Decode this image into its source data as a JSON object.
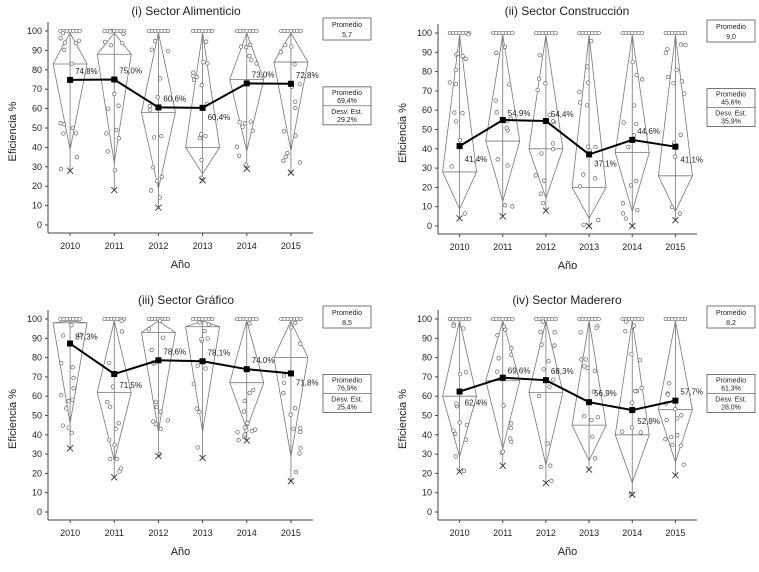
{
  "chart_data": [
    {
      "type": "line",
      "title": "(i) Sector Alimenticio",
      "xlabel": "Año",
      "ylabel": "Eficiencia %",
      "ylim": [
        0,
        100
      ],
      "yticks": [
        "0",
        "10",
        "20",
        "30",
        "40",
        "50",
        "60",
        "70",
        "80",
        "90",
        "100"
      ],
      "categories": [
        "2010",
        "2011",
        "2012",
        "2013",
        "2014",
        "2015"
      ],
      "series": [
        {
          "values": [
            74.8,
            75.0,
            60.6,
            60.4,
            73.0,
            72.8
          ]
        }
      ],
      "point_labels": [
        "74,8%",
        "75,0%",
        "60,6%",
        "60,4%",
        "73,0%",
        "72,8%"
      ],
      "box_promedio": {
        "label": "Promedio",
        "value": "5,7"
      },
      "box_stats": {
        "promedio_label": "Promedio",
        "promedio_value": "69,4%",
        "desv_label": "Desv. Est.",
        "desv_value": "29,2%"
      },
      "distributions": [
        {
          "min": 28,
          "max": 100,
          "median": 83
        },
        {
          "min": 18,
          "max": 100,
          "median": 88
        },
        {
          "min": 9,
          "max": 100,
          "median": 58
        },
        {
          "min": 23,
          "max": 100,
          "median": 40
        },
        {
          "min": 29,
          "max": 100,
          "median": 75
        },
        {
          "min": 27,
          "max": 100,
          "median": 84
        }
      ]
    },
    {
      "type": "line",
      "title": "(ii) Sector Construcción",
      "xlabel": "Año",
      "ylabel": "Eficiencia %",
      "ylim": [
        0,
        100
      ],
      "yticks": [
        "0",
        "10",
        "20",
        "30",
        "40",
        "50",
        "60",
        "70",
        "80",
        "90",
        "100"
      ],
      "categories": [
        "2010",
        "2011",
        "2012",
        "2013",
        "2014",
        "2015"
      ],
      "series": [
        {
          "values": [
            41.4,
            54.9,
            54.4,
            37.1,
            44.6,
            41.1
          ]
        }
      ],
      "point_labels": [
        "41,4%",
        "54,9%",
        "54,4%",
        "37,1%",
        "44,6%",
        "41,1%"
      ],
      "box_promedio": {
        "label": "Promedio",
        "value": "9,0"
      },
      "box_stats": {
        "promedio_label": "Promedio",
        "promedio_value": "45,6%",
        "desv_label": "Desv. Est.",
        "desv_value": "35,9%"
      },
      "distributions": [
        {
          "min": 4,
          "max": 100,
          "median": 28
        },
        {
          "min": 5,
          "max": 100,
          "median": 44
        },
        {
          "min": 8,
          "max": 100,
          "median": 40
        },
        {
          "min": 0,
          "max": 100,
          "median": 20
        },
        {
          "min": 0,
          "max": 100,
          "median": 38
        },
        {
          "min": 3,
          "max": 100,
          "median": 26
        }
      ]
    },
    {
      "type": "line",
      "title": "(iii) Sector Gráfico",
      "xlabel": "Año",
      "ylabel": "Eficiencia %",
      "ylim": [
        0,
        100
      ],
      "yticks": [
        "0",
        "10",
        "20",
        "30",
        "40",
        "50",
        "60",
        "70",
        "80",
        "90",
        "100"
      ],
      "categories": [
        "2010",
        "2011",
        "2012",
        "2013",
        "2014",
        "2015"
      ],
      "series": [
        {
          "values": [
            87.3,
            71.5,
            78.6,
            78.1,
            74.0,
            71.8
          ]
        }
      ],
      "point_labels": [
        "87,3%",
        "71,5%",
        "78,6%",
        "78,1%",
        "74,0%",
        "71,8%"
      ],
      "box_promedio": {
        "label": "Promedio",
        "value": "8,5"
      },
      "box_stats": {
        "promedio_label": "Promedio",
        "promedio_value": "76,9%",
        "desv_label": "Desv. Est.",
        "desv_value": "25,4%"
      },
      "distributions": [
        {
          "min": 33,
          "max": 100,
          "median": 98
        },
        {
          "min": 18,
          "max": 100,
          "median": 62
        },
        {
          "min": 29,
          "max": 100,
          "median": 93
        },
        {
          "min": 28,
          "max": 100,
          "median": 96
        },
        {
          "min": 37,
          "max": 100,
          "median": 67
        },
        {
          "min": 16,
          "max": 100,
          "median": 80
        }
      ]
    },
    {
      "type": "line",
      "title": "(iv) Sector Maderero",
      "xlabel": "Año",
      "ylabel": "Eficiencia %",
      "ylim": [
        0,
        100
      ],
      "yticks": [
        "0",
        "10",
        "20",
        "30",
        "40",
        "50",
        "60",
        "70",
        "80",
        "90",
        "100"
      ],
      "categories": [
        "2010",
        "2011",
        "2012",
        "2013",
        "2014",
        "2015"
      ],
      "series": [
        {
          "values": [
            62.4,
            69.6,
            68.3,
            56.9,
            52.8,
            57.7
          ]
        }
      ],
      "point_labels": [
        "62,4%",
        "69,6%",
        "68,3%",
        "56,9%",
        "52,8%",
        "57,7%"
      ],
      "box_promedio": {
        "label": "Promedio",
        "value": "8,2"
      },
      "box_stats": {
        "promedio_label": "Promedio",
        "promedio_value": "61,3%",
        "desv_label": "Desv. Est.",
        "desv_value": "28,0%"
      },
      "distributions": [
        {
          "min": 21,
          "max": 100,
          "median": 60
        },
        {
          "min": 24,
          "max": 100,
          "median": 68
        },
        {
          "min": 15,
          "max": 100,
          "median": 62
        },
        {
          "min": 22,
          "max": 100,
          "median": 45
        },
        {
          "min": 9,
          "max": 100,
          "median": 40
        },
        {
          "min": 19,
          "max": 100,
          "median": 53
        }
      ]
    }
  ]
}
